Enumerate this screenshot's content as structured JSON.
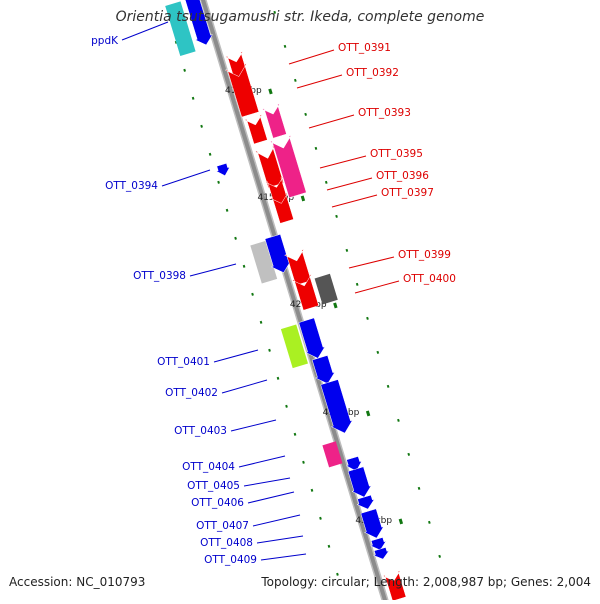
{
  "title": "Orientia tsutsugamushi str. Ikeda, complete genome",
  "footer": {
    "accession": "Accession: NC_010793",
    "summary": "Topology: circular; Length: 2,008,987 bp; Genes: 2,004"
  },
  "colors": {
    "backbone": "#8c8c8c",
    "forward_label": "#0000cc",
    "reverse_label": "#dd0000",
    "tick": "#117711"
  },
  "scale_ticks": [
    "410 kbp",
    "415 kbp",
    "420 kbp",
    "425 kbp",
    "430 kbp"
  ],
  "genes_forward": [
    {
      "label": "ppdK",
      "color": "#2ec4c4"
    },
    {
      "label": "OTT_0394",
      "color": "#0000ee"
    },
    {
      "label": "OTT_0398",
      "color": "#c0c0c0"
    },
    {
      "label": "OTT_0401",
      "color": "#aaf022"
    },
    {
      "label": "OTT_0402",
      "color": "#0000ee"
    },
    {
      "label": "OTT_0403",
      "color": "#0000ee"
    },
    {
      "label": "OTT_0404",
      "color": "#ee2288"
    },
    {
      "label": "OTT_0405",
      "color": "#0000ee"
    },
    {
      "label": "OTT_0406",
      "color": "#0000ee"
    },
    {
      "label": "OTT_0407",
      "color": "#0000ee"
    },
    {
      "label": "OTT_0408",
      "color": "#0000ee"
    },
    {
      "label": "OTT_0409",
      "color": "#0000ee"
    }
  ],
  "genes_reverse": [
    {
      "label": "OTT_0391",
      "color": "#ee0000"
    },
    {
      "label": "OTT_0392",
      "color": "#ee0000"
    },
    {
      "label": "OTT_0393",
      "color": "#ee2288"
    },
    {
      "label": "OTT_0395",
      "color": "#ee0000"
    },
    {
      "label": "OTT_0396",
      "color": "#ee2288"
    },
    {
      "label": "OTT_0397",
      "color": "#ee0000"
    },
    {
      "label": "OTT_0399",
      "color": "#ee0000"
    },
    {
      "label": "OTT_0400",
      "color": "#555555"
    }
  ]
}
